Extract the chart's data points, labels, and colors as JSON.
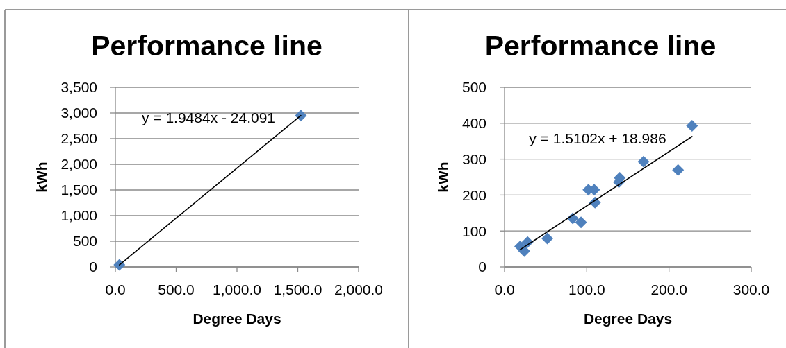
{
  "chart_data": [
    {
      "type": "scatter",
      "title": "Performance line",
      "xlabel": "Degree Days",
      "ylabel": "kWh",
      "series": [
        {
          "type": "scatter",
          "color": "#4f81bd",
          "marker": "diamond",
          "x": [
            33,
            1525
          ],
          "values": [
            40,
            2950
          ]
        },
        {
          "type": "line",
          "color": "#000000",
          "x": [
            33,
            1525
          ],
          "values": [
            40,
            2950
          ]
        }
      ],
      "xlim": [
        0,
        2000
      ],
      "xticks": [
        {
          "value": 0,
          "label": "0.0"
        },
        {
          "value": 500,
          "label": "500.0"
        },
        {
          "value": 1000,
          "label": "1,000.0"
        },
        {
          "value": 1500,
          "label": "1,500.0"
        },
        {
          "value": 2000,
          "label": "2,000.0"
        }
      ],
      "ylim": [
        0,
        3500
      ],
      "yticks": [
        0,
        500,
        {
          "value": 1000,
          "label": "1,000"
        },
        {
          "value": 1500,
          "label": "1,500"
        },
        {
          "value": 2000,
          "label": "2,000"
        },
        {
          "value": 2500,
          "label": "2,500"
        },
        {
          "value": 3000,
          "label": "3,000"
        },
        {
          "value": 3500,
          "label": "3,500"
        }
      ],
      "grid": "y",
      "annotations": [
        "y = 1.9484x - 24.091"
      ]
    },
    {
      "type": "scatter",
      "title": "Performance line",
      "xlabel": "Degree Days",
      "ylabel": "kWh",
      "series": [
        {
          "type": "scatter",
          "color": "#4f81bd",
          "marker": "diamond",
          "x": [
            19,
            24,
            28,
            52,
            83,
            93,
            102,
            109,
            110,
            140,
            139,
            169,
            211,
            228
          ],
          "values": [
            57,
            44,
            69,
            79,
            135,
            124,
            215,
            215,
            179,
            248,
            236,
            293,
            270,
            393
          ]
        },
        {
          "type": "line",
          "color": "#000000",
          "x": [
            19,
            228
          ],
          "values": [
            48,
            363
          ]
        }
      ],
      "xlim": [
        0,
        300
      ],
      "xticks": [
        {
          "value": 0,
          "label": "0.0"
        },
        {
          "value": 100,
          "label": "100.0"
        },
        {
          "value": 200,
          "label": "200.0"
        },
        {
          "value": 300,
          "label": "300.0"
        }
      ],
      "ylim": [
        0,
        500
      ],
      "yticks": [
        0,
        100,
        200,
        300,
        400,
        500
      ],
      "grid": "y",
      "annotations": [
        "y = 1.5102x + 18.986"
      ]
    }
  ]
}
